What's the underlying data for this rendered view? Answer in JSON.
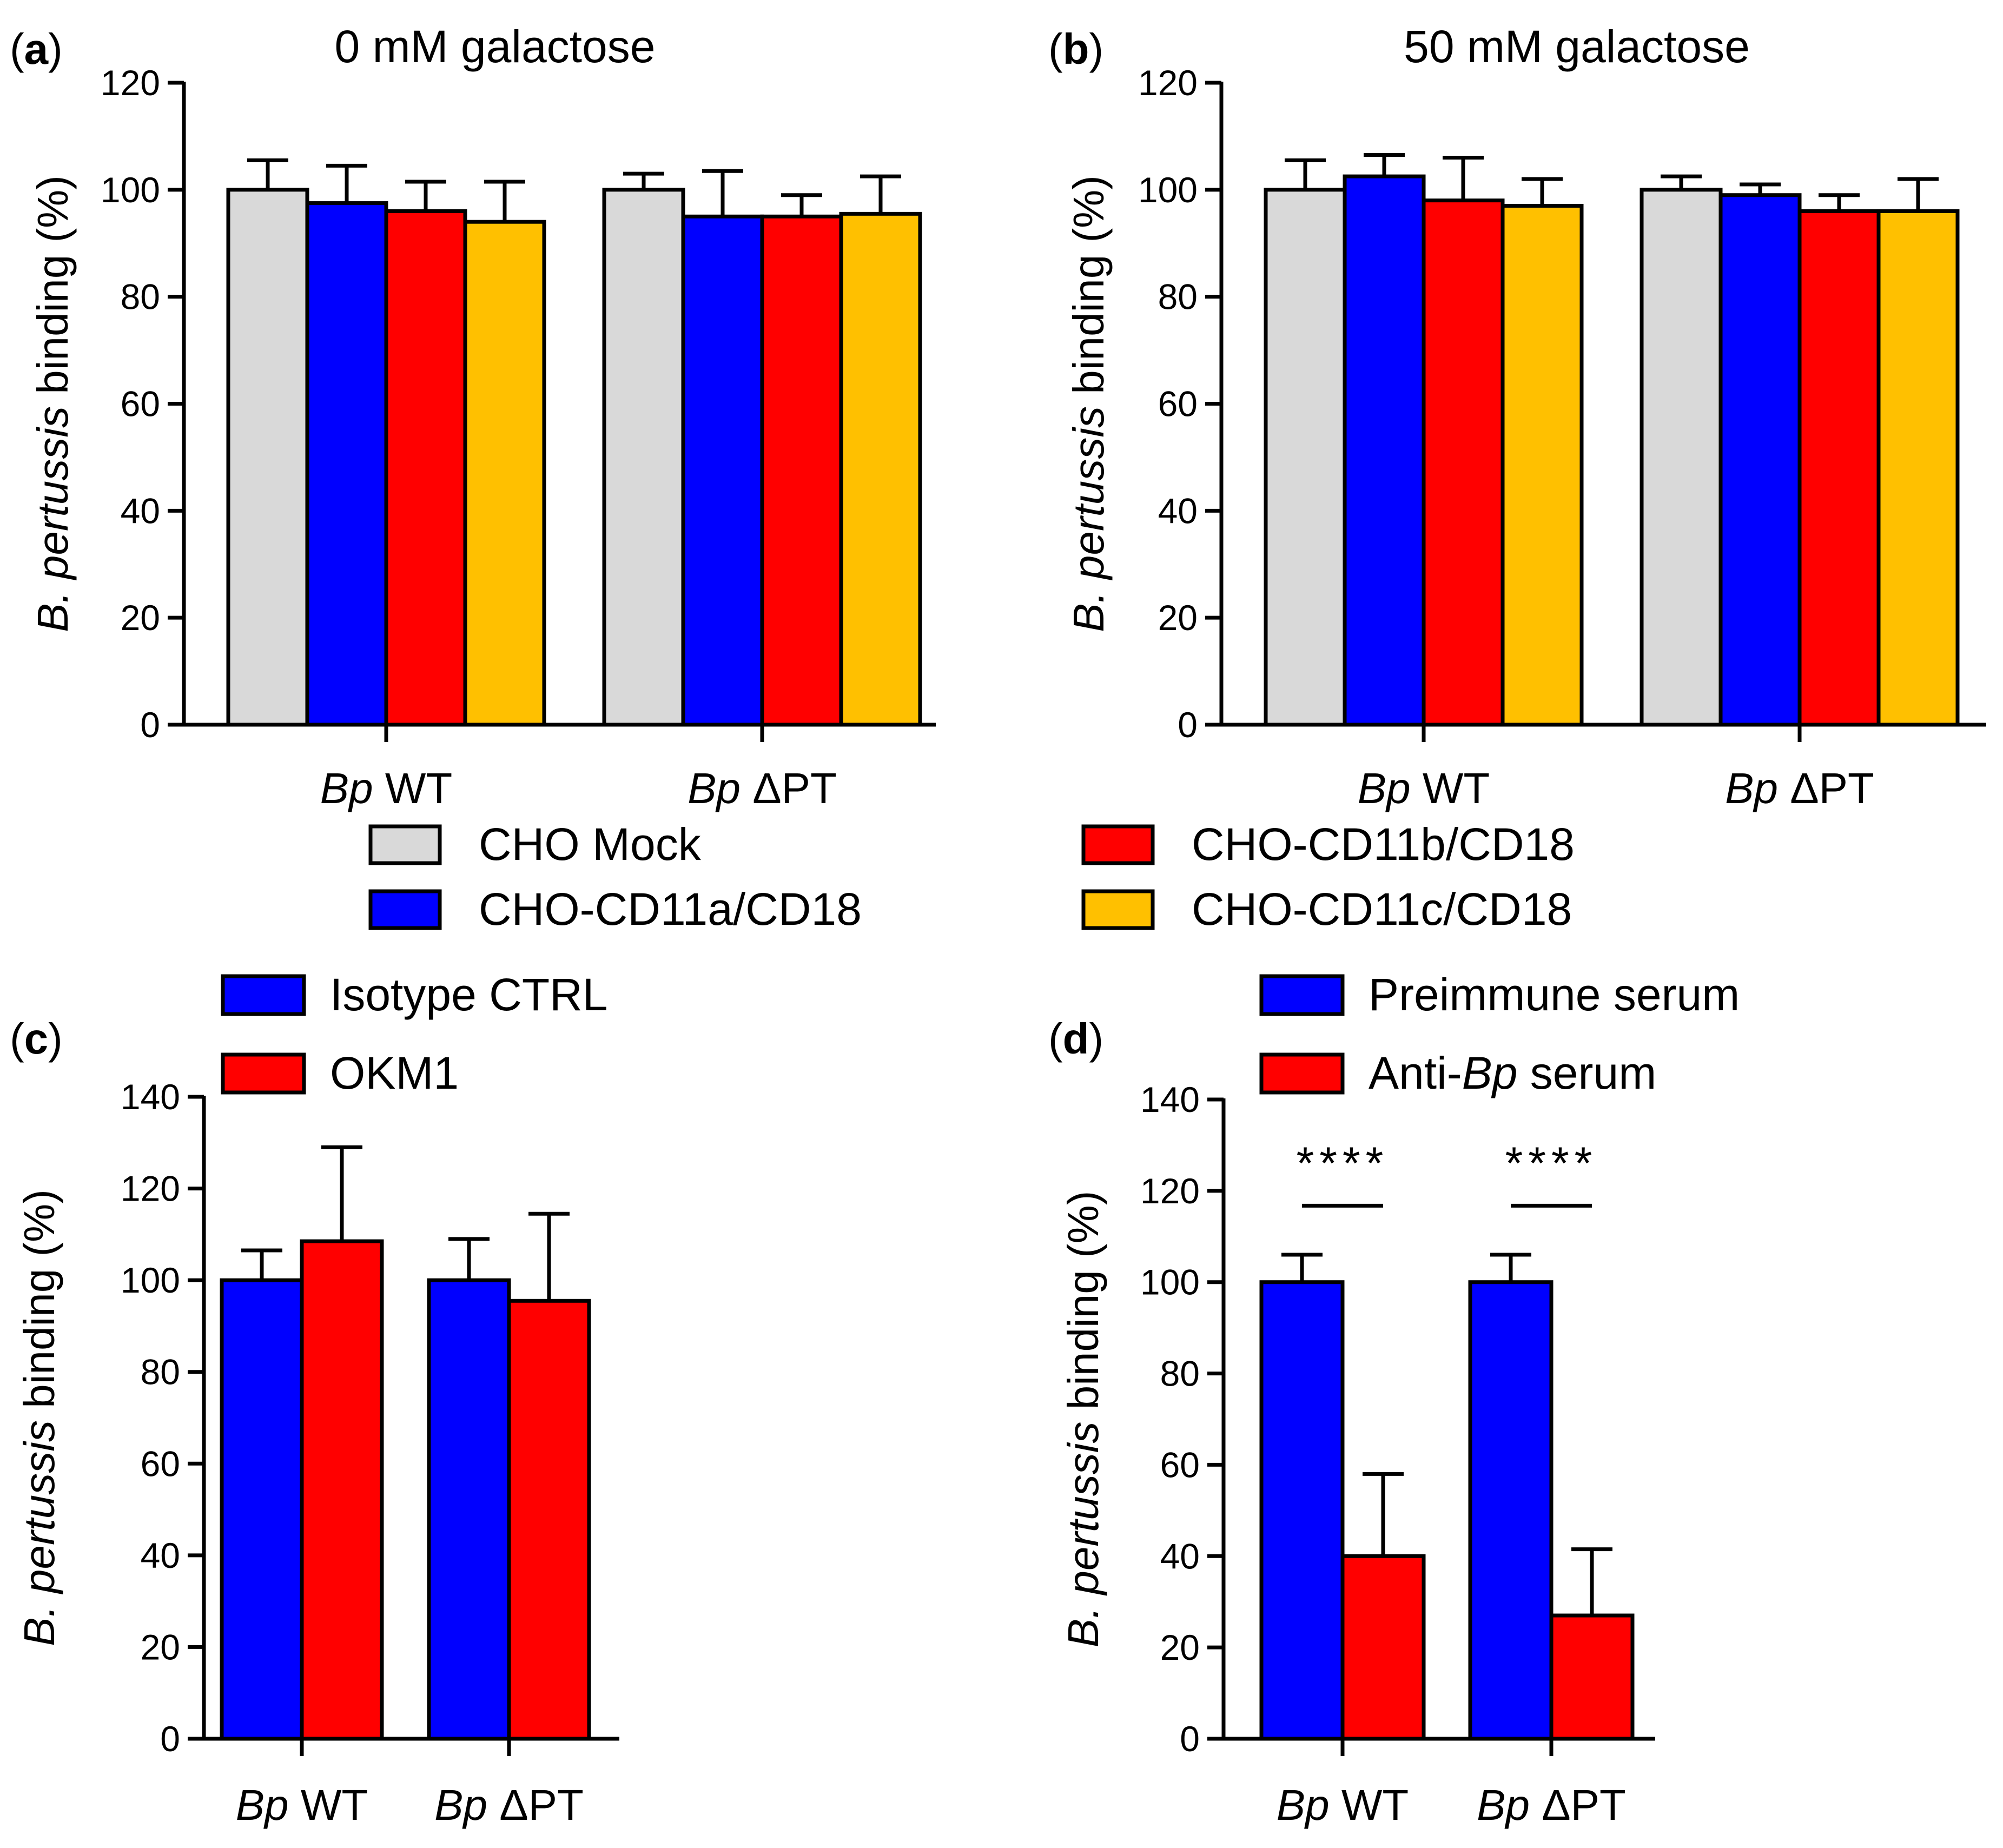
{
  "figure": {
    "legend_top": {
      "entries": [
        {
          "label": "CHO Mock",
          "color": "#d9d9d9"
        },
        {
          "label": "CHO-CD11a/CD18",
          "color": "#0000ff"
        },
        {
          "label": "CHO-CD11b/CD18",
          "color": "#ff0000"
        },
        {
          "label": "CHO-CD11c/CD18",
          "color": "#ffc000"
        }
      ]
    }
  },
  "chart_data": [
    {
      "panel": "a",
      "type": "bar",
      "title": "0 mM galactose",
      "ylabel_italic": "B. pertussis",
      "ylabel_rest": " binding (%)",
      "ylim": [
        0,
        120
      ],
      "yticks": [
        0,
        20,
        40,
        60,
        80,
        100,
        120
      ],
      "categories": [
        {
          "italic": "Bp",
          "rest": " WT"
        },
        {
          "italic": "Bp",
          "rest": " ΔPT"
        }
      ],
      "series": [
        {
          "name": "CHO Mock",
          "color": "#d9d9d9",
          "values": [
            100,
            100
          ],
          "errors": [
            5.5,
            3
          ]
        },
        {
          "name": "CHO-CD11a/CD18",
          "color": "#0000ff",
          "values": [
            97.5,
            95
          ],
          "errors": [
            7,
            8.5
          ]
        },
        {
          "name": "CHO-CD11b/CD18",
          "color": "#ff0000",
          "values": [
            96,
            95
          ],
          "errors": [
            5.5,
            4
          ]
        },
        {
          "name": "CHO-CD11c/CD18",
          "color": "#ffc000",
          "values": [
            94,
            95.5
          ],
          "errors": [
            7.5,
            7
          ]
        }
      ]
    },
    {
      "panel": "b",
      "type": "bar",
      "title": "50 mM galactose",
      "ylabel_italic": "B. pertussis",
      "ylabel_rest": " binding (%)",
      "ylim": [
        0,
        120
      ],
      "yticks": [
        0,
        20,
        40,
        60,
        80,
        100,
        120
      ],
      "categories": [
        {
          "italic": "Bp",
          "rest": " WT"
        },
        {
          "italic": "Bp",
          "rest": " ΔPT"
        }
      ],
      "series": [
        {
          "name": "CHO Mock",
          "color": "#d9d9d9",
          "values": [
            100,
            100
          ],
          "errors": [
            5.5,
            2.5
          ]
        },
        {
          "name": "CHO-CD11a/CD18",
          "color": "#0000ff",
          "values": [
            102.5,
            99
          ],
          "errors": [
            4,
            2
          ]
        },
        {
          "name": "CHO-CD11b/CD18",
          "color": "#ff0000",
          "values": [
            98,
            96
          ],
          "errors": [
            8,
            3
          ]
        },
        {
          "name": "CHO-CD11c/CD18",
          "color": "#ffc000",
          "values": [
            97,
            96
          ],
          "errors": [
            5,
            6
          ]
        }
      ]
    },
    {
      "panel": "c",
      "type": "bar",
      "title": "",
      "ylabel_italic": "B. pertussis",
      "ylabel_rest": " binding (%)",
      "ylim": [
        0,
        140
      ],
      "yticks": [
        0,
        20,
        40,
        60,
        80,
        100,
        120,
        140
      ],
      "categories": [
        {
          "italic": "Bp",
          "rest": " WT"
        },
        {
          "italic": "Bp",
          "rest": " ΔPT"
        }
      ],
      "legend": [
        {
          "label_plain": "Isotype CTRL",
          "color": "#0000ff"
        },
        {
          "label_plain": "OKM1",
          "color": "#ff0000"
        }
      ],
      "series": [
        {
          "name": "Isotype CTRL",
          "color": "#0000ff",
          "values": [
            100,
            100
          ],
          "errors": [
            6.5,
            9
          ]
        },
        {
          "name": "OKM1",
          "color": "#ff0000",
          "values": [
            108.5,
            95.5
          ],
          "errors": [
            20.5,
            19
          ]
        }
      ]
    },
    {
      "panel": "d",
      "type": "bar",
      "title": "",
      "ylabel_italic": "B. pertussis",
      "ylabel_rest": " binding (%)",
      "ylim": [
        0,
        140
      ],
      "yticks": [
        0,
        20,
        40,
        60,
        80,
        100,
        120,
        140
      ],
      "categories": [
        {
          "italic": "Bp",
          "rest": " WT"
        },
        {
          "italic": "Bp",
          "rest": " ΔPT"
        }
      ],
      "legend": [
        {
          "label_plain": "Preimmune serum",
          "color": "#0000ff"
        },
        {
          "label_pre": "Anti-",
          "label_italic": "Bp",
          "label_post": " serum",
          "color": "#ff0000"
        }
      ],
      "series": [
        {
          "name": "Preimmune serum",
          "color": "#0000ff",
          "values": [
            100,
            100
          ],
          "errors": [
            6,
            6
          ]
        },
        {
          "name": "Anti-Bp serum",
          "color": "#ff0000",
          "values": [
            40,
            27
          ],
          "errors": [
            18,
            14.5
          ]
        }
      ],
      "annotations": [
        {
          "category": 0,
          "text": "****",
          "y": 128
        },
        {
          "category": 1,
          "text": "****",
          "y": 128
        }
      ]
    }
  ]
}
